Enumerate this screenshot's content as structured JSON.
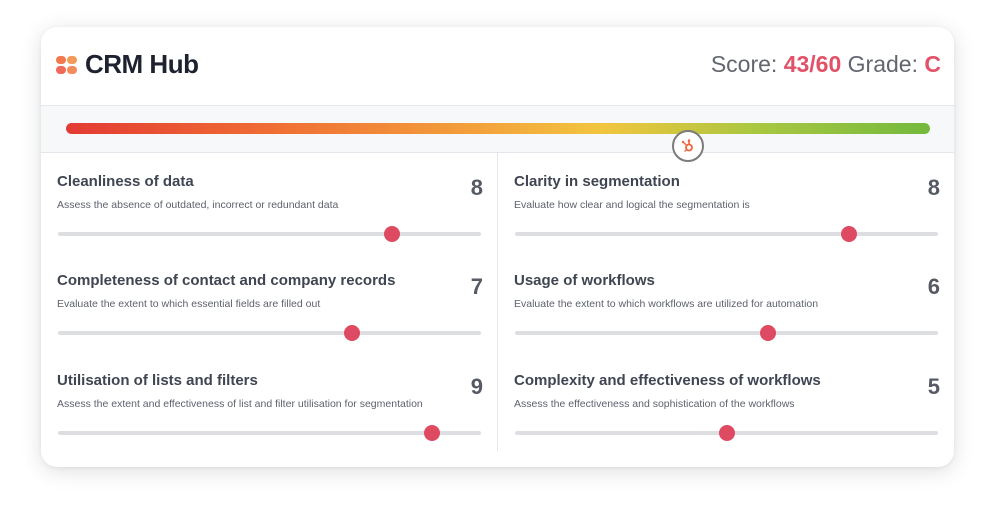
{
  "header": {
    "brand": "CRM Hub",
    "score_label": "Score:",
    "score_value": "43/60",
    "grade_label": "Grade:",
    "grade_value": "C"
  },
  "gauge": {
    "marker_icon": "hubspot-sprocket-icon",
    "position": 0.719
  },
  "metrics": [
    {
      "title": "Cleanliness of data",
      "desc": "Assess the absence of outdated, incorrect or redundant data",
      "value": "8",
      "slider": 0.79
    },
    {
      "title": "Clarity in segmentation",
      "desc": "Evaluate how clear and logical the segmentation is",
      "value": "8",
      "slider": 0.79
    },
    {
      "title": "Completeness of contact and company records",
      "desc": "Evaluate the extent to which essential fields are filled out",
      "value": "7",
      "slider": 0.695
    },
    {
      "title": "Usage of workflows",
      "desc": "Evaluate the extent to which workflows are utilized for automation",
      "value": "6",
      "slider": 0.597
    },
    {
      "title": "Utilisation of lists and filters",
      "desc": "Assess the extent and effectiveness of list and filter utilisation for segmentation",
      "value": "9",
      "slider": 0.885
    },
    {
      "title": "Complexity and effectiveness of workflows",
      "desc": "Assess the effectiveness and sophistication of the workflows",
      "value": "5",
      "slider": 0.5
    }
  ],
  "colors": {
    "accent": "#e15268",
    "knob": "#dd4a62",
    "text_dark": "#1e2230",
    "gauge_start": "#e33b33",
    "gauge_end": "#74b93d"
  }
}
